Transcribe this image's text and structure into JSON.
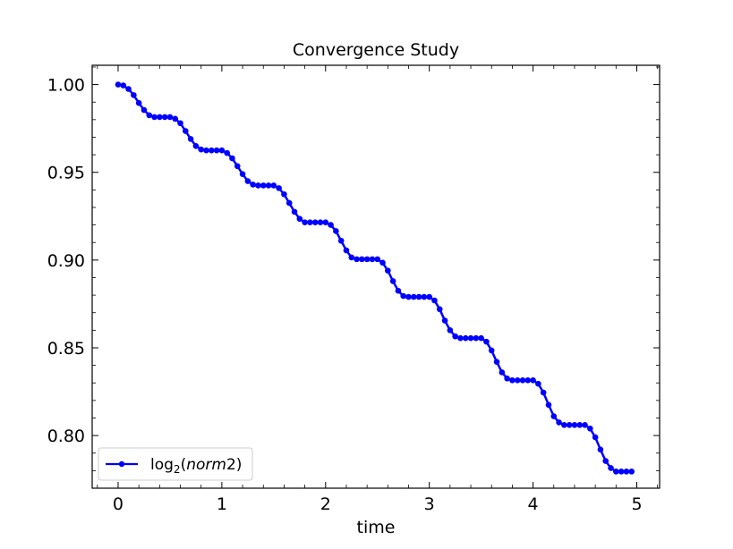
{
  "chart_data": {
    "type": "line",
    "title": "Convergence Study",
    "xlabel": "time",
    "ylabel": "",
    "xlim": [
      -0.25,
      5.22
    ],
    "ylim": [
      0.77,
      1.011
    ],
    "x_ticks": [
      0,
      1,
      2,
      3,
      4,
      5
    ],
    "x_tick_labels": [
      "0",
      "1",
      "2",
      "3",
      "4",
      "5"
    ],
    "y_ticks": [
      0.8,
      0.85,
      0.9,
      0.95,
      1.0
    ],
    "y_tick_labels": [
      "0.80",
      "0.85",
      "0.90",
      "0.95",
      "1.00"
    ],
    "grid": false,
    "legend_position": "lower-left",
    "series": [
      {
        "name": "log2(norm2)",
        "legend_parts": {
          "base": "log",
          "sub": "2",
          "open": "(",
          "italic": "norm",
          "close": "2)"
        },
        "color": "#0000ff",
        "marker": "circle",
        "x": [
          0,
          0.05,
          0.1,
          0.15,
          0.2,
          0.25,
          0.3,
          0.35,
          0.4,
          0.45,
          0.5,
          0.55,
          0.6,
          0.65,
          0.7,
          0.75,
          0.8,
          0.85,
          0.9,
          0.95,
          1.0,
          1.05,
          1.1,
          1.15,
          1.2,
          1.25,
          1.3,
          1.35,
          1.4,
          1.45,
          1.5,
          1.55,
          1.6,
          1.65,
          1.7,
          1.75,
          1.8,
          1.85,
          1.9,
          1.95,
          2.0,
          2.05,
          2.1,
          2.15,
          2.2,
          2.25,
          2.3,
          2.35,
          2.4,
          2.45,
          2.5,
          2.55,
          2.6,
          2.65,
          2.7,
          2.75,
          2.8,
          2.85,
          2.9,
          2.95,
          3.0,
          3.05,
          3.1,
          3.15,
          3.2,
          3.25,
          3.3,
          3.35,
          3.4,
          3.45,
          3.5,
          3.55,
          3.6,
          3.65,
          3.7,
          3.75,
          3.8,
          3.85,
          3.9,
          3.95,
          4.0,
          4.05,
          4.1,
          4.15,
          4.2,
          4.25,
          4.3,
          4.35,
          4.4,
          4.45,
          4.5,
          4.55,
          4.6,
          4.65,
          4.7,
          4.75,
          4.8,
          4.85,
          4.9,
          4.95
        ],
        "y": [
          1.0,
          0.9995,
          0.9975,
          0.994,
          0.9895,
          0.9855,
          0.9825,
          0.9815,
          0.9815,
          0.9815,
          0.9815,
          0.9805,
          0.978,
          0.9735,
          0.969,
          0.965,
          0.963,
          0.9625,
          0.9625,
          0.9625,
          0.9625,
          0.961,
          0.958,
          0.9535,
          0.949,
          0.945,
          0.943,
          0.9425,
          0.9425,
          0.9425,
          0.9425,
          0.941,
          0.9375,
          0.9325,
          0.9275,
          0.9235,
          0.9215,
          0.9215,
          0.9215,
          0.9215,
          0.9215,
          0.92,
          0.9165,
          0.911,
          0.9055,
          0.9015,
          0.9005,
          0.9005,
          0.9005,
          0.9005,
          0.9005,
          0.8985,
          0.894,
          0.888,
          0.8825,
          0.8795,
          0.879,
          0.879,
          0.879,
          0.879,
          0.879,
          0.877,
          0.872,
          0.8655,
          0.86,
          0.8565,
          0.8555,
          0.8555,
          0.8555,
          0.8555,
          0.8555,
          0.8535,
          0.8485,
          0.842,
          0.836,
          0.8325,
          0.8315,
          0.8315,
          0.8315,
          0.8315,
          0.8315,
          0.8295,
          0.8245,
          0.8175,
          0.811,
          0.8075,
          0.806,
          0.806,
          0.806,
          0.806,
          0.806,
          0.804,
          0.799,
          0.792,
          0.7855,
          0.7815,
          0.7795,
          0.7795,
          0.7795,
          0.7795
        ]
      }
    ]
  }
}
